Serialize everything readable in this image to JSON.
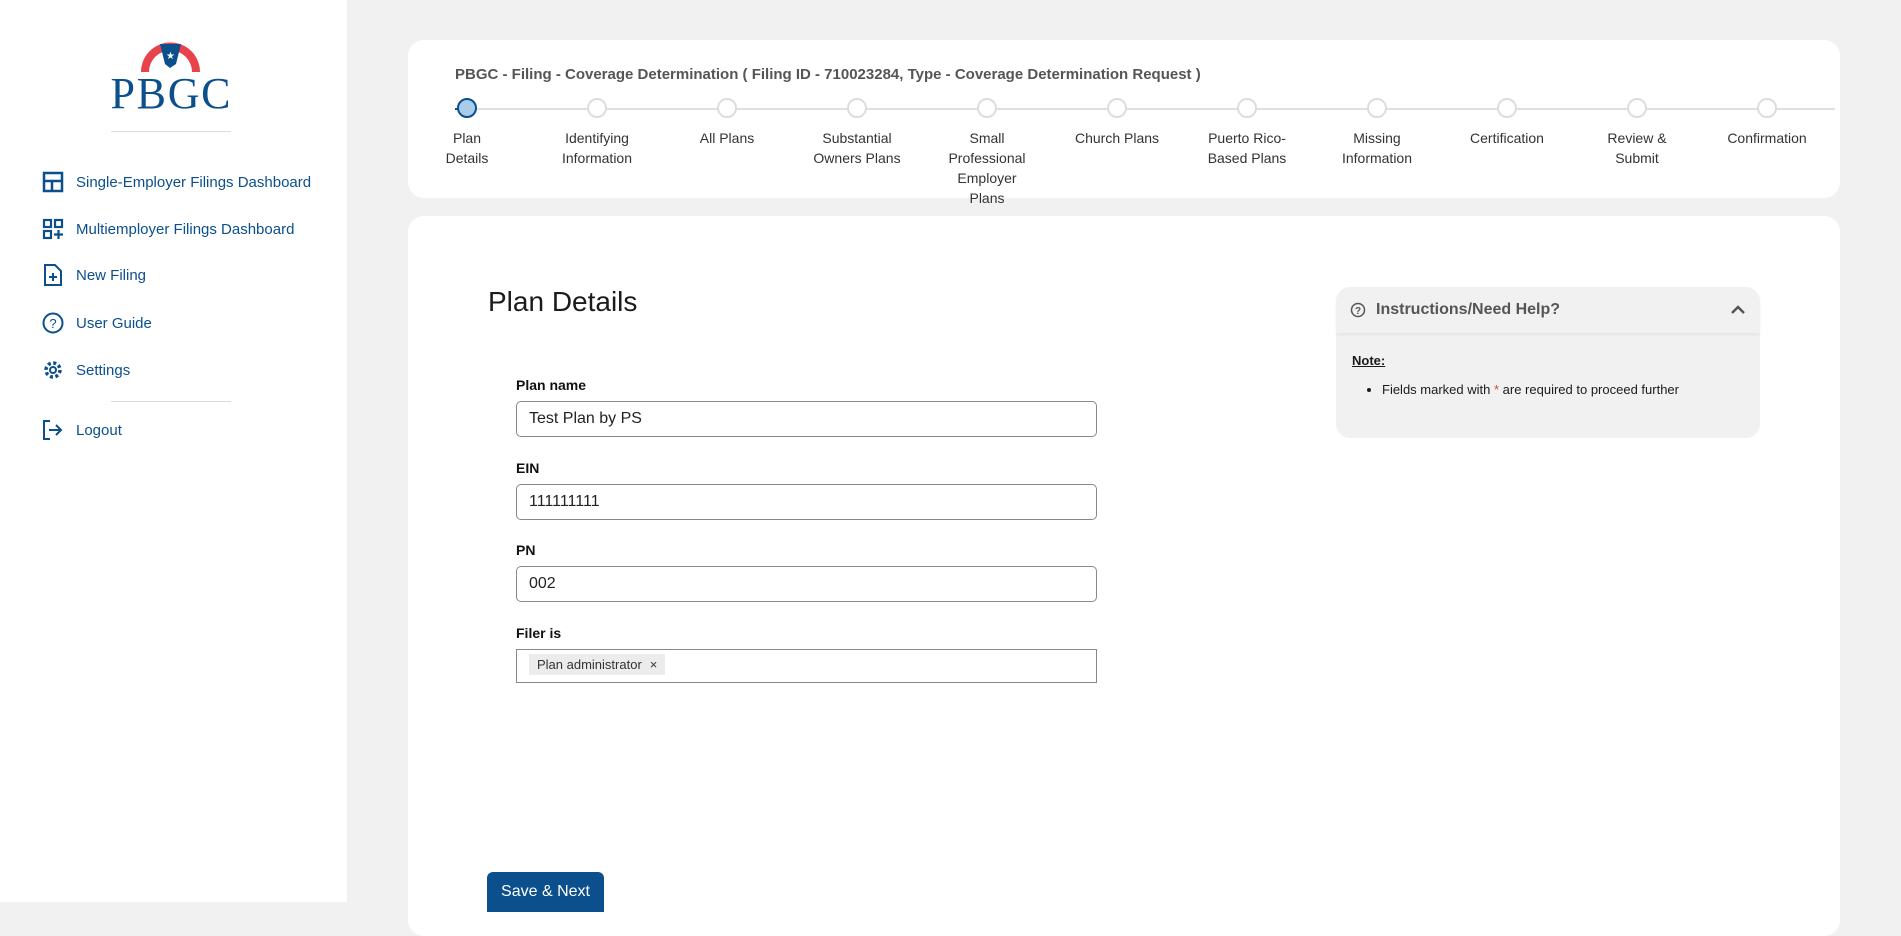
{
  "brand": {
    "logo_text": "PBGC"
  },
  "sidebar": {
    "items": [
      {
        "label": "Single-Employer Filings Dashboard",
        "icon": "dashboard-icon"
      },
      {
        "label": "Multiemployer Filings Dashboard",
        "icon": "grid-plus-icon"
      },
      {
        "label": "New Filing",
        "icon": "file-plus-icon"
      },
      {
        "label": "User Guide",
        "icon": "question-circle-icon"
      },
      {
        "label": "Settings",
        "icon": "gear-icon"
      }
    ],
    "logout": "Logout"
  },
  "header": {
    "title": "PBGC - Filing - Coverage Determination ( Filing ID - 710023284, Type - Coverage Determination Request )",
    "steps": [
      "Plan Details",
      "Identifying Information",
      "All Plans",
      "Substantial Owners Plans",
      "Small Professional Employer Plans",
      "Church Plans",
      "Puerto Rico-Based Plans",
      "Missing Information",
      "Certification",
      "Review & Submit",
      "Confirmation"
    ],
    "active_step": 0
  },
  "form": {
    "heading": "Plan Details",
    "plan_name_label": "Plan name",
    "plan_name": "Test Plan by PS",
    "ein_label": "EIN",
    "ein": "111111111",
    "pn_label": "PN",
    "pn": "002",
    "filer_label": "Filer is",
    "filer_chip": "Plan administrator",
    "chip_remove": "×",
    "save": "Save & Next"
  },
  "help": {
    "title": "Instructions/Need Help?",
    "note": "Note:",
    "item_pre": "Fields marked with ",
    "asterisk": "*",
    "item_post": " are required to proceed further"
  },
  "colors": {
    "primary": "#0b4f8c",
    "required": "#e0443e"
  }
}
